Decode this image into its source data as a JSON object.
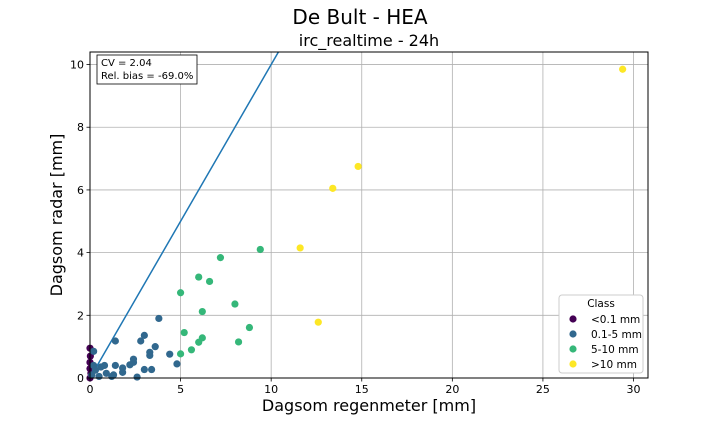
{
  "chart_data": {
    "type": "scatter",
    "suptitle": "De Bult - HEA",
    "title": "irc_realtime - 24h",
    "xlabel": "Dagsom regenmeter [mm]",
    "ylabel": "Dagsom radar [mm]",
    "xlim": [
      0,
      30.8
    ],
    "ylim": [
      0,
      10.4
    ],
    "xticks": [
      0,
      5,
      10,
      15,
      20,
      25,
      30
    ],
    "yticks": [
      0,
      2,
      4,
      6,
      8,
      10
    ],
    "grid": true,
    "stats_box": {
      "cv": "CV = 2.04",
      "bias": "Rel. bias = -69.0%"
    },
    "reference_line": {
      "slope": 1.0,
      "intercept": 0.0,
      "color": "#1f77b4"
    },
    "legend": {
      "title": "Class",
      "placement": "lower-right"
    },
    "series": [
      {
        "name": "<0.1 mm",
        "color": "#440154",
        "points": [
          [
            0.0,
            0.95
          ],
          [
            0.02,
            0.7
          ],
          [
            0.0,
            0.5
          ],
          [
            0.0,
            0.3
          ],
          [
            0.05,
            0.15
          ],
          [
            0.0,
            0.0
          ]
        ]
      },
      {
        "name": "0.1-5 mm",
        "color": "#31688e",
        "points": [
          [
            0.2,
            0.85
          ],
          [
            0.2,
            0.4
          ],
          [
            0.3,
            0.25
          ],
          [
            0.1,
            0.1
          ],
          [
            0.5,
            0.05
          ],
          [
            0.6,
            0.35
          ],
          [
            0.8,
            0.4
          ],
          [
            0.9,
            0.15
          ],
          [
            1.2,
            0.05
          ],
          [
            1.3,
            0.1
          ],
          [
            1.4,
            0.4
          ],
          [
            1.4,
            1.18
          ],
          [
            1.8,
            0.32
          ],
          [
            1.8,
            0.18
          ],
          [
            2.2,
            0.42
          ],
          [
            2.4,
            0.6
          ],
          [
            2.4,
            0.5
          ],
          [
            2.6,
            0.03
          ],
          [
            2.8,
            1.18
          ],
          [
            3.0,
            1.36
          ],
          [
            3.0,
            0.27
          ],
          [
            3.3,
            0.82
          ],
          [
            3.3,
            0.72
          ],
          [
            3.4,
            0.27
          ],
          [
            3.6,
            1.0
          ],
          [
            3.8,
            1.9
          ],
          [
            4.4,
            0.76
          ],
          [
            4.8,
            0.45
          ]
        ]
      },
      {
        "name": "5-10 mm",
        "color": "#35b779",
        "points": [
          [
            5.0,
            0.77
          ],
          [
            5.0,
            2.72
          ],
          [
            5.2,
            1.45
          ],
          [
            5.6,
            0.9
          ],
          [
            6.0,
            3.22
          ],
          [
            6.0,
            1.14
          ],
          [
            6.2,
            1.28
          ],
          [
            6.2,
            2.12
          ],
          [
            6.6,
            3.08
          ],
          [
            7.2,
            3.84
          ],
          [
            8.0,
            2.36
          ],
          [
            8.2,
            1.15
          ],
          [
            8.8,
            1.61
          ],
          [
            9.4,
            4.1
          ]
        ]
      },
      {
        "name": ">10 mm",
        "color": "#fde725",
        "points": [
          [
            11.6,
            4.15
          ],
          [
            12.6,
            1.78
          ],
          [
            13.4,
            6.05
          ],
          [
            14.8,
            6.75
          ],
          [
            29.4,
            9.85
          ]
        ]
      }
    ]
  }
}
